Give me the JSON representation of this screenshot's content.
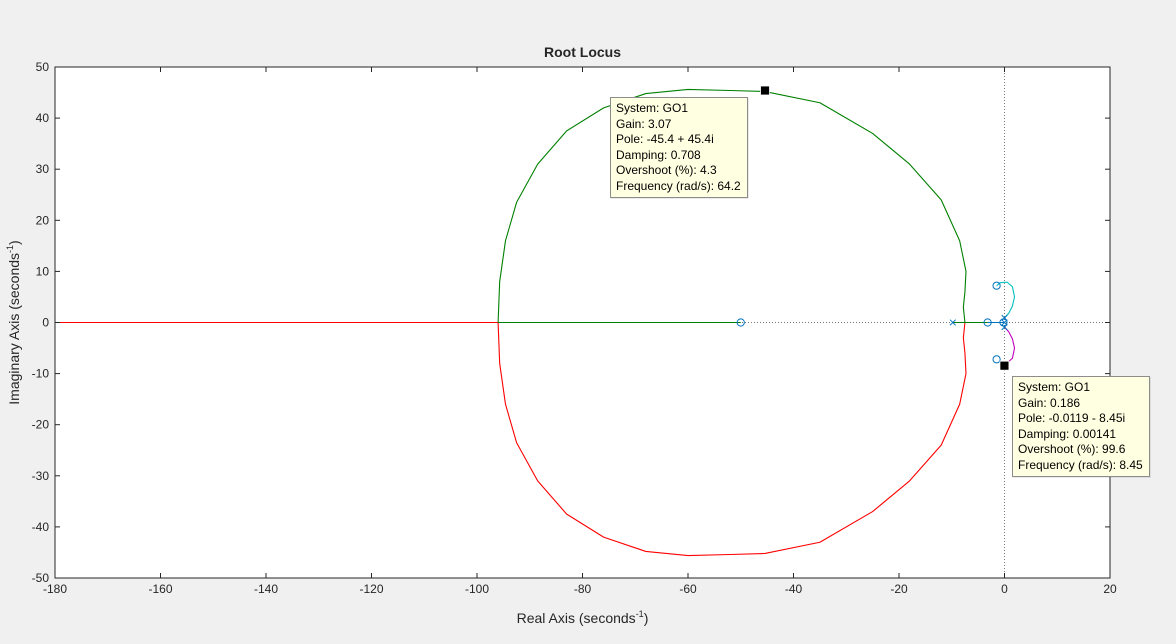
{
  "chart_data": {
    "type": "line",
    "title": "Root Locus",
    "xlabel": "Real Axis (seconds",
    "ylabel": "Imaginary Axis (seconds",
    "unit_exponent": "-1",
    "xlim": [
      -180,
      20
    ],
    "ylim": [
      -50,
      50
    ],
    "xticks": [
      -180,
      -160,
      -140,
      -120,
      -100,
      -80,
      -60,
      -40,
      -20,
      0,
      20
    ],
    "yticks": [
      -50,
      -40,
      -30,
      -20,
      -10,
      0,
      10,
      20,
      30,
      40,
      50
    ],
    "grid": false,
    "colors": {
      "red": "#ff0000",
      "green": "#008000",
      "cyan": "#00bfbf",
      "purple": "#bf00bf",
      "blue": "#0072bd",
      "marker": "#0072bd"
    },
    "series": [
      {
        "color": "red",
        "points": [
          [
            -180,
            0
          ],
          [
            -96,
            0
          ],
          [
            -95.7,
            -8
          ],
          [
            -94.6,
            -16
          ],
          [
            -92.5,
            -23.5
          ],
          [
            -88.5,
            -31
          ],
          [
            -83,
            -37.5
          ],
          [
            -76,
            -42
          ],
          [
            -68,
            -44.8
          ],
          [
            -60,
            -45.6
          ],
          [
            -52,
            -45.4
          ],
          [
            -45.4,
            -45.2
          ],
          [
            -35,
            -43
          ],
          [
            -25,
            -37
          ],
          [
            -18,
            -31
          ],
          [
            -12,
            -24
          ],
          [
            -8.5,
            -16
          ],
          [
            -7.3,
            -10
          ],
          [
            -7.5,
            -6
          ],
          [
            -7.8,
            -3
          ],
          [
            -7.5,
            0
          ]
        ]
      },
      {
        "color": "green",
        "points": [
          [
            -96,
            0
          ],
          [
            -95.7,
            8
          ],
          [
            -94.6,
            16
          ],
          [
            -92.5,
            23.5
          ],
          [
            -88.5,
            31
          ],
          [
            -83,
            37.5
          ],
          [
            -76,
            42
          ],
          [
            -68,
            44.8
          ],
          [
            -60,
            45.6
          ],
          [
            -52,
            45.4
          ],
          [
            -45.4,
            45.2
          ],
          [
            -35,
            43
          ],
          [
            -25,
            37
          ],
          [
            -18,
            31
          ],
          [
            -12,
            24
          ],
          [
            -8.5,
            16
          ],
          [
            -7.3,
            10
          ],
          [
            -7.5,
            6
          ],
          [
            -7.8,
            3
          ],
          [
            -7.5,
            0
          ]
        ]
      },
      {
        "color": "green",
        "points": [
          [
            -96,
            0
          ],
          [
            -50,
            0
          ]
        ]
      },
      {
        "color": "green",
        "points": [
          [
            -9.8,
            0
          ],
          [
            -3.2,
            0
          ]
        ]
      },
      {
        "color": "blue",
        "points": [
          [
            -3.2,
            0
          ],
          [
            0,
            0
          ]
        ]
      },
      {
        "color": "cyan",
        "points": [
          [
            0,
            0.9
          ],
          [
            0.8,
            1.8
          ],
          [
            1.5,
            3.2
          ],
          [
            1.9,
            5
          ],
          [
            1.5,
            7
          ],
          [
            0.5,
            7.9
          ],
          [
            -0.8,
            7.8
          ],
          [
            -1.5,
            7.2
          ]
        ]
      },
      {
        "color": "purple",
        "points": [
          [
            0,
            -0.9
          ],
          [
            0.8,
            -1.8
          ],
          [
            1.5,
            -3.2
          ],
          [
            1.9,
            -5
          ],
          [
            1.5,
            -7
          ],
          [
            0.5,
            -7.9
          ],
          [
            -0.0119,
            -8.45
          ]
        ]
      }
    ],
    "poles": [
      [
        -9.8,
        0
      ],
      [
        0,
        0.9
      ],
      [
        0,
        -0.9
      ],
      [
        0,
        0
      ]
    ],
    "zeros": [
      [
        -50,
        0
      ],
      [
        -3.2,
        0
      ],
      [
        -1.5,
        7.2
      ],
      [
        -1.5,
        -7.2
      ],
      [
        -0.2,
        0
      ]
    ],
    "selected_points": [
      [
        -45.4,
        45.4
      ],
      [
        -0.0119,
        -8.45
      ]
    ],
    "datatips": [
      {
        "lines": [
          "System: GO1",
          "Gain: 3.07",
          "Pole: -45.4 + 45.4i",
          "Damping: 0.708",
          "Overshoot (%): 4.3",
          "Frequency (rad/s): 64.2"
        ]
      },
      {
        "lines": [
          "System: GO1",
          "Gain: 0.186",
          "Pole: -0.0119 - 8.45i",
          "Damping: 0.00141",
          "Overshoot (%): 99.6",
          "Frequency (rad/s): 8.45"
        ]
      }
    ]
  }
}
